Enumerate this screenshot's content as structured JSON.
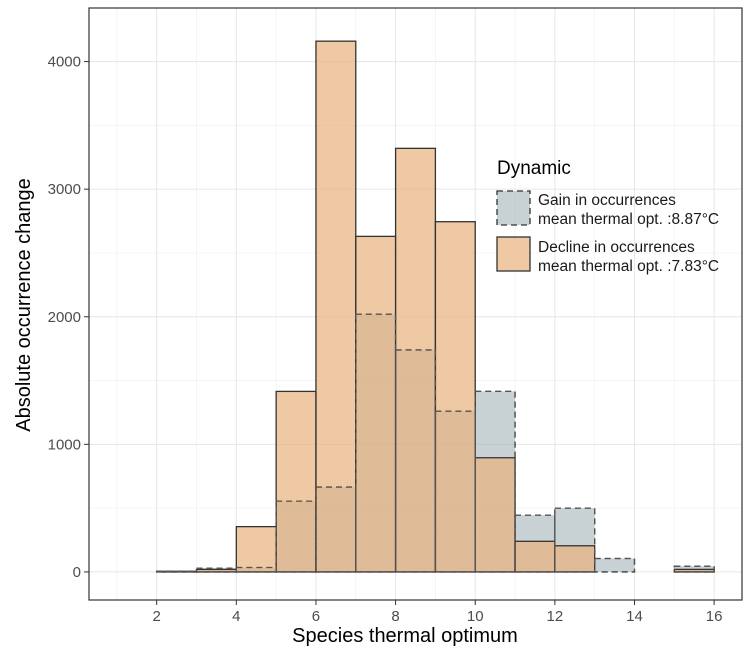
{
  "chart_data": {
    "type": "bar",
    "xlabel": "Species thermal optimum",
    "ylabel": "Absolute occurrence change",
    "xlim": [
      0.3,
      16.7
    ],
    "ylim": [
      -220,
      4420
    ],
    "x_ticks": [
      "2",
      "4",
      "6",
      "8",
      "10",
      "12",
      "14",
      "16"
    ],
    "y_ticks": [
      "0",
      "1000",
      "2000",
      "3000",
      "4000"
    ],
    "bin_width": 1,
    "grid": true,
    "legend": {
      "title": "Dynamic",
      "position": "right-inside"
    },
    "series": [
      {
        "name": "Gain in occurrences",
        "label_line2": "mean thermal opt. :8.87°C",
        "color": "#9aacae",
        "border": "dashed",
        "bin_starts": [
          1,
          2,
          3,
          4,
          5,
          6,
          7,
          8,
          9,
          10,
          11,
          12,
          13,
          14,
          15
        ],
        "values": [
          0,
          5,
          30,
          35,
          555,
          665,
          2020,
          1740,
          1260,
          1415,
          445,
          500,
          105,
          0,
          45
        ]
      },
      {
        "name": "Decline in occurrences",
        "label_line2": "mean thermal opt. :7.83°C",
        "color": "#e8b27e",
        "border": "solid",
        "bin_starts": [
          1,
          2,
          3,
          4,
          5,
          6,
          7,
          8,
          9,
          10,
          11,
          12,
          13,
          14,
          15
        ],
        "values": [
          0,
          5,
          20,
          355,
          1415,
          4160,
          2630,
          3320,
          2745,
          895,
          240,
          205,
          0,
          0,
          20
        ]
      }
    ]
  }
}
